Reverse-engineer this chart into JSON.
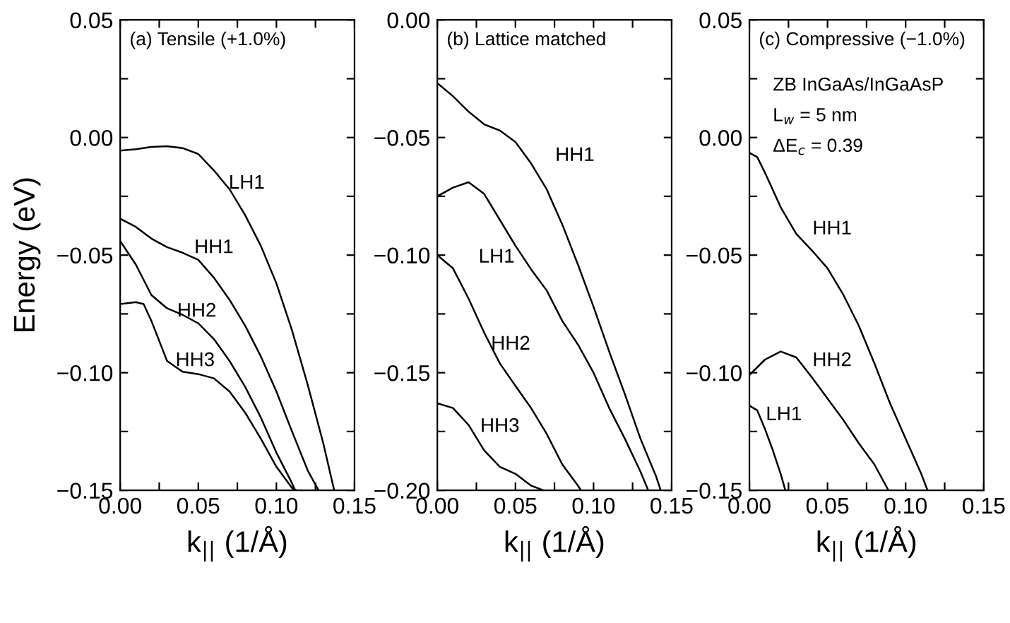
{
  "chart_data": [
    {
      "type": "line",
      "title": "(a) Tensile (+1.0%)",
      "xlabel": "k$_{||}$ (1/Å)",
      "ylabel": "Energy (eV)",
      "xlim": [
        0,
        0.15
      ],
      "ylim": [
        -0.15,
        0.05
      ],
      "xticks": [
        {
          "value": 0,
          "label": "0.00"
        },
        {
          "value": 0.025,
          "label": null
        },
        {
          "value": 0.05,
          "label": "0.05"
        },
        {
          "value": 0.075,
          "label": null
        },
        {
          "value": 0.1,
          "label": "0.10"
        },
        {
          "value": 0.125,
          "label": null
        },
        {
          "value": 0.15,
          "label": "0.15"
        }
      ],
      "yticks": [
        {
          "value": -0.15,
          "label": "−0.15"
        },
        {
          "value": -0.125,
          "label": null
        },
        {
          "value": -0.1,
          "label": "−0.10"
        },
        {
          "value": -0.075,
          "label": null
        },
        {
          "value": -0.05,
          "label": "−0.05"
        },
        {
          "value": -0.025,
          "label": null
        },
        {
          "value": 0,
          "label": "0.00"
        },
        {
          "value": 0.025,
          "label": null
        },
        {
          "value": 0.05,
          "label": "0.05"
        }
      ],
      "series": [
        {
          "color": "#000000",
          "x": [
            0,
            0.01,
            0.02,
            0.03,
            0.04,
            0.05,
            0.06,
            0.07,
            0.08,
            0.09,
            0.1,
            0.11,
            0.12,
            0.13,
            0.137
          ],
          "values": [
            -0.0056,
            -0.005,
            -0.004,
            -0.0037,
            -0.0045,
            -0.007,
            -0.014,
            -0.022,
            -0.033,
            -0.046,
            -0.062,
            -0.082,
            -0.105,
            -0.13,
            -0.15
          ]
        },
        {
          "color": "#000000",
          "x": [
            0,
            0.01,
            0.02,
            0.03,
            0.04,
            0.05,
            0.06,
            0.07,
            0.08,
            0.09,
            0.1,
            0.11,
            0.12,
            0.127
          ],
          "values": [
            -0.0345,
            -0.038,
            -0.043,
            -0.0466,
            -0.049,
            -0.052,
            -0.0596,
            -0.069,
            -0.08,
            -0.093,
            -0.108,
            -0.125,
            -0.1415,
            -0.15
          ]
        },
        {
          "color": "#000000",
          "x": [
            0,
            0.01,
            0.02,
            0.03,
            0.04,
            0.05,
            0.06,
            0.07,
            0.08,
            0.09,
            0.1,
            0.11,
            0.112
          ],
          "values": [
            -0.044,
            -0.054,
            -0.067,
            -0.0726,
            -0.0754,
            -0.079,
            -0.0857,
            -0.095,
            -0.106,
            -0.119,
            -0.134,
            -0.147,
            -0.15
          ]
        },
        {
          "color": "#000000",
          "x": [
            0,
            0.01,
            0.015,
            0.02,
            0.03,
            0.04,
            0.05,
            0.06,
            0.07,
            0.08,
            0.09,
            0.1,
            0.11,
            0.113
          ],
          "values": [
            -0.0708,
            -0.07,
            -0.0708,
            -0.078,
            -0.095,
            -0.0996,
            -0.1006,
            -0.1024,
            -0.108,
            -0.117,
            -0.128,
            -0.14,
            -0.149,
            -0.15
          ]
        }
      ],
      "annotations": [
        "LH1",
        "HH1",
        "HH2",
        "HH3"
      ]
    },
    {
      "type": "line",
      "title": "(b) Lattice matched",
      "xlabel": "k$_{||}$ (1/Å)",
      "xlim": [
        0,
        0.15
      ],
      "ylim": [
        -0.2,
        0.0
      ],
      "xticks": [
        {
          "value": 0,
          "label": "0.00"
        },
        {
          "value": 0.025,
          "label": null
        },
        {
          "value": 0.05,
          "label": "0.05"
        },
        {
          "value": 0.075,
          "label": null
        },
        {
          "value": 0.1,
          "label": "0.10"
        },
        {
          "value": 0.125,
          "label": null
        },
        {
          "value": 0.15,
          "label": "0.15"
        }
      ],
      "yticks": [
        {
          "value": -0.2,
          "label": "−0.20"
        },
        {
          "value": -0.175,
          "label": null
        },
        {
          "value": -0.15,
          "label": "−0.15"
        },
        {
          "value": -0.125,
          "label": null
        },
        {
          "value": -0.1,
          "label": "−0.10"
        },
        {
          "value": -0.075,
          "label": null
        },
        {
          "value": -0.05,
          "label": "−0.05"
        },
        {
          "value": -0.025,
          "label": null
        },
        {
          "value": 0,
          "label": "0.00"
        }
      ],
      "series": [
        {
          "color": "#000000",
          "x": [
            0,
            0.01,
            0.02,
            0.03,
            0.04,
            0.05,
            0.06,
            0.07,
            0.08,
            0.09,
            0.1,
            0.11,
            0.12,
            0.13,
            0.14,
            0.143
          ],
          "values": [
            -0.0269,
            -0.0324,
            -0.039,
            -0.0444,
            -0.047,
            -0.0519,
            -0.061,
            -0.072,
            -0.087,
            -0.104,
            -0.122,
            -0.141,
            -0.159,
            -0.178,
            -0.194,
            -0.2
          ]
        },
        {
          "color": "#000000",
          "x": [
            0,
            0.01,
            0.02,
            0.03,
            0.04,
            0.05,
            0.06,
            0.07,
            0.08,
            0.09,
            0.1,
            0.11,
            0.12,
            0.13,
            0.135
          ],
          "values": [
            -0.075,
            -0.0713,
            -0.069,
            -0.074,
            -0.085,
            -0.096,
            -0.106,
            -0.115,
            -0.128,
            -0.138,
            -0.15,
            -0.165,
            -0.178,
            -0.192,
            -0.2
          ]
        },
        {
          "color": "#000000",
          "x": [
            0,
            0.01,
            0.02,
            0.03,
            0.04,
            0.05,
            0.06,
            0.07,
            0.08,
            0.09,
            0.092
          ],
          "values": [
            -0.1,
            -0.1056,
            -0.1185,
            -0.133,
            -0.146,
            -0.1556,
            -0.165,
            -0.176,
            -0.189,
            -0.198,
            -0.2
          ]
        },
        {
          "color": "#000000",
          "x": [
            0,
            0.01,
            0.02,
            0.03,
            0.04,
            0.05,
            0.06,
            0.068
          ],
          "values": [
            -0.163,
            -0.165,
            -0.1722,
            -0.183,
            -0.19,
            -0.193,
            -0.198,
            -0.2
          ]
        }
      ],
      "annotations": [
        "HH1",
        "LH1",
        "HH2",
        "HH3"
      ]
    },
    {
      "type": "line",
      "title": "(c) Compressive (−1.0%)",
      "xlabel": "k$_{||}$ (1/Å)",
      "xlim": [
        0,
        0.15
      ],
      "ylim": [
        -0.15,
        0.05
      ],
      "xticks": [
        {
          "value": 0,
          "label": "0.00"
        },
        {
          "value": 0.025,
          "label": null
        },
        {
          "value": 0.05,
          "label": "0.05"
        },
        {
          "value": 0.075,
          "label": null
        },
        {
          "value": 0.1,
          "label": "0.10"
        },
        {
          "value": 0.125,
          "label": null
        },
        {
          "value": 0.15,
          "label": "0.15"
        }
      ],
      "yticks": [
        {
          "value": -0.15,
          "label": "−0.15"
        },
        {
          "value": -0.125,
          "label": null
        },
        {
          "value": -0.1,
          "label": "−0.10"
        },
        {
          "value": -0.075,
          "label": null
        },
        {
          "value": -0.05,
          "label": "−0.05"
        },
        {
          "value": -0.025,
          "label": null
        },
        {
          "value": 0,
          "label": "0.00"
        },
        {
          "value": 0.025,
          "label": null
        },
        {
          "value": 0.05,
          "label": "0.05"
        }
      ],
      "series": [
        {
          "color": "#000000",
          "x": [
            0,
            0.005,
            0.01,
            0.02,
            0.03,
            0.04,
            0.05,
            0.06,
            0.07,
            0.08,
            0.09,
            0.1,
            0.11,
            0.114
          ],
          "values": [
            -0.0065,
            -0.0083,
            -0.015,
            -0.0296,
            -0.041,
            -0.048,
            -0.0556,
            -0.0667,
            -0.08,
            -0.096,
            -0.113,
            -0.128,
            -0.143,
            -0.15
          ]
        },
        {
          "color": "#000000",
          "x": [
            0,
            0.01,
            0.02,
            0.03,
            0.04,
            0.05,
            0.06,
            0.07,
            0.08,
            0.089
          ],
          "values": [
            -0.101,
            -0.0944,
            -0.091,
            -0.0935,
            -0.102,
            -0.111,
            -0.12,
            -0.13,
            -0.139,
            -0.15
          ]
        },
        {
          "color": "#000000",
          "x": [
            0,
            0.005,
            0.01,
            0.015,
            0.02,
            0.023
          ],
          "values": [
            -0.114,
            -0.116,
            -0.124,
            -0.133,
            -0.143,
            -0.15
          ]
        }
      ],
      "annotations": [
        "HH1",
        "HH2",
        "LH1",
        "ZB InGaAs/InGaAsP",
        "L$_{w}$ = 5 nm",
        "ΔE$_{c}$ = 0.39"
      ]
    }
  ]
}
